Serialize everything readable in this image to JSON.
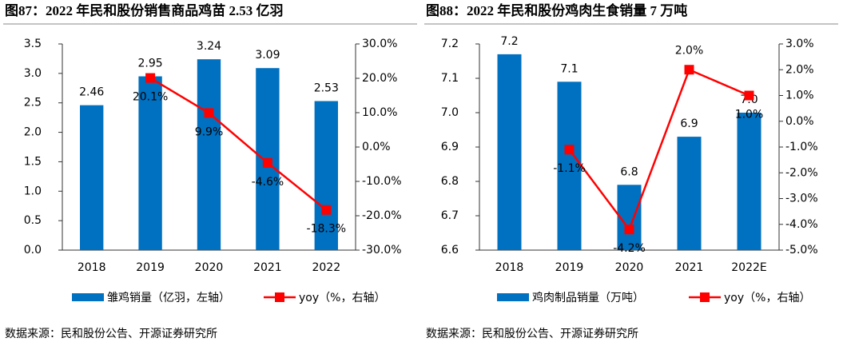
{
  "chart_data": [
    {
      "type": "bar",
      "title": "图87：2022 年民和股份销售商品鸡苗 2.53 亿羽",
      "categories": [
        "2018",
        "2019",
        "2020",
        "2021",
        "2022"
      ],
      "series": [
        {
          "name": "雏鸡销量（亿羽，左轴）",
          "color": "#0070c0",
          "type": "bar",
          "axis": "y",
          "values": [
            2.46,
            2.95,
            3.24,
            3.09,
            2.53
          ]
        },
        {
          "name": "yoy（%，右轴）",
          "color": "#ff0000",
          "type": "line",
          "axis": "y2",
          "values": [
            null,
            20.1,
            9.9,
            -4.6,
            -18.3
          ],
          "value_labels": [
            null,
            "20.1%",
            "9.9%",
            "-4.6%",
            "-18.3%"
          ]
        }
      ],
      "ylim": [
        0,
        3.5
      ],
      "yticks": [
        {
          "value": 0,
          "label": "0.0"
        },
        0.5,
        {
          "value": 1,
          "label": "1.0"
        },
        1.5,
        {
          "value": 2,
          "label": "2.0"
        },
        2.5,
        {
          "value": 3,
          "label": "3.0"
        },
        3.5
      ],
      "y2lim": [
        -30,
        30
      ],
      "y2ticks": [
        {
          "value": -30,
          "label": "-30.0%"
        },
        {
          "value": -20,
          "label": "-20.0%"
        },
        {
          "value": -10,
          "label": "-10.0%"
        },
        {
          "value": 0,
          "label": "0.0%"
        },
        {
          "value": 10,
          "label": "10.0%"
        },
        {
          "value": 20,
          "label": "20.0%"
        },
        {
          "value": 30,
          "label": "30.0%"
        }
      ],
      "legend": "bottom",
      "source": "数据来源：民和股份公告、开源证券研究所"
    },
    {
      "type": "bar",
      "title": "图88：2022 年民和股份鸡肉生食销量 7 万吨",
      "categories": [
        "2018",
        "2019",
        "2020",
        "2021",
        "2022E"
      ],
      "series": [
        {
          "name": "鸡肉制品销量（万吨）",
          "color": "#0070c0",
          "type": "bar",
          "axis": "y",
          "values": [
            7.17,
            7.09,
            6.79,
            6.93,
            7.0
          ],
          "value_labels": [
            "7.2",
            "7.1",
            "6.8",
            "6.9",
            "7.0"
          ]
        },
        {
          "name": "yoy（%，右轴）",
          "color": "#ff0000",
          "type": "line",
          "axis": "y2",
          "values": [
            null,
            -1.1,
            -4.2,
            2.0,
            1.0
          ],
          "value_labels": [
            null,
            "-1.1%",
            "-4.2%",
            "2.0%",
            "1.0%"
          ]
        }
      ],
      "ylim": [
        6.6,
        7.2
      ],
      "yticks": [
        6.6,
        6.7,
        6.8,
        6.9,
        {
          "value": 7,
          "label": "7.0"
        },
        7.1,
        7.2
      ],
      "y2lim": [
        -5,
        3
      ],
      "y2ticks": [
        {
          "value": -5,
          "label": "-5.0%"
        },
        {
          "value": -4,
          "label": "-4.0%"
        },
        {
          "value": -3,
          "label": "-3.0%"
        },
        {
          "value": -2,
          "label": "-2.0%"
        },
        {
          "value": -1,
          "label": "-1.0%"
        },
        {
          "value": 0,
          "label": "0.0%"
        },
        {
          "value": 1,
          "label": "1.0%"
        },
        {
          "value": 2,
          "label": "2.0%"
        },
        {
          "value": 3,
          "label": "3.0%"
        }
      ],
      "legend": "bottom",
      "source": "数据来源：民和股份公告、开源证券研究所"
    }
  ]
}
